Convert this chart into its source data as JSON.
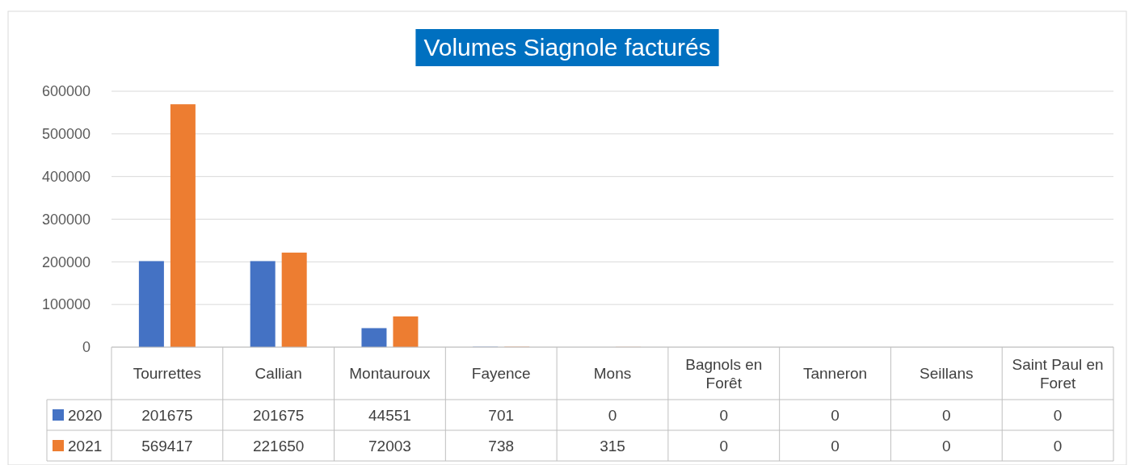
{
  "chart_data": {
    "type": "bar",
    "title": "Volumes Siagnole facturés",
    "categories": [
      "Tourrettes",
      "Callian",
      "Montauroux",
      "Fayence",
      "Mons",
      "Bagnols en Forêt",
      "Tanneron",
      "Seillans",
      "Saint Paul en Foret"
    ],
    "series": [
      {
        "name": "2020",
        "color": "#4472c4",
        "values": [
          201675,
          201675,
          44551,
          701,
          0,
          0,
          0,
          0,
          0
        ]
      },
      {
        "name": "2021",
        "color": "#ed7d31",
        "values": [
          569417,
          221650,
          72003,
          738,
          315,
          0,
          0,
          0,
          0
        ]
      }
    ],
    "ylim": [
      0,
      600000
    ],
    "yticks": [
      0,
      100000,
      200000,
      300000,
      400000,
      500000,
      600000
    ],
    "grid": "y",
    "legend": "bottom",
    "data_labels": true
  }
}
